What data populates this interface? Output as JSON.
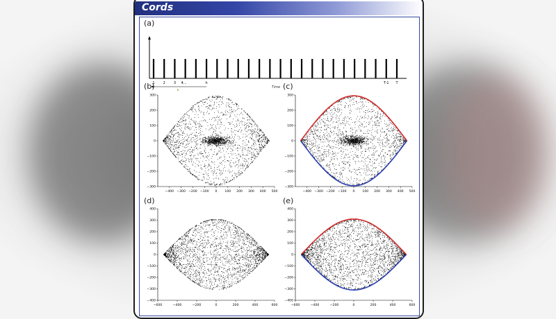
{
  "banner": {
    "title": "Cords"
  },
  "panels": {
    "a": "(a)",
    "b": "(b)",
    "c": "(c)",
    "d": "(d)",
    "e": "(e)"
  },
  "timeline": {
    "ticks": [
      "1",
      "2",
      "3",
      "4..."
    ],
    "h_label": "h",
    "arrow_label": "h",
    "time_label": "Time",
    "end_ticks": [
      "T-1",
      "T"
    ],
    "spike_count": 24
  },
  "colors": {
    "upper_envelope": "#d42a2a",
    "lower_envelope": "#2a3fb0",
    "points": "#000000",
    "accent": "#3446a6"
  },
  "chart_data": [
    {
      "type": "scatter",
      "panel": "b",
      "xlim": [
        -500,
        500
      ],
      "ylim": [
        -300,
        300
      ],
      "xticks": [
        "−400",
        "−300",
        "−200",
        "−100",
        "0",
        "100",
        "200",
        "300",
        "400",
        "500"
      ],
      "yticks": [
        "300",
        "200",
        "100",
        "0",
        "−100",
        "−200",
        "−300"
      ],
      "envelope": {
        "amplitude": 295,
        "half_width": 455
      },
      "envelope_curves": false
    },
    {
      "type": "scatter",
      "panel": "c",
      "xlim": [
        -500,
        500
      ],
      "ylim": [
        -300,
        300
      ],
      "xticks": [
        "−400",
        "−300",
        "−200",
        "−100",
        "0",
        "100",
        "200",
        "300",
        "400",
        "500"
      ],
      "yticks": [
        "300",
        "200",
        "100",
        "0",
        "−100",
        "−200",
        "−300"
      ],
      "envelope": {
        "amplitude": 295,
        "half_width": 455
      },
      "envelope_curves": true
    },
    {
      "type": "scatter",
      "panel": "d",
      "xlim": [
        -600,
        600
      ],
      "ylim": [
        -400,
        400
      ],
      "xticks": [
        "−600",
        "−400",
        "−200",
        "0",
        "200",
        "400",
        "600"
      ],
      "yticks": [
        "400",
        "300",
        "200",
        "100",
        "0",
        "−100",
        "−200",
        "−300",
        "−400"
      ],
      "envelope": {
        "amplitude": 310,
        "half_width": 540
      },
      "envelope_curves": false
    },
    {
      "type": "scatter",
      "panel": "e",
      "xlim": [
        -600,
        600
      ],
      "ylim": [
        -400,
        400
      ],
      "xticks": [
        "−600",
        "−400",
        "−200",
        "0",
        "200",
        "400",
        "600"
      ],
      "yticks": [
        "400",
        "300",
        "200",
        "100",
        "0",
        "−100",
        "−200",
        "−300",
        "−400"
      ],
      "envelope": {
        "amplitude": 310,
        "half_width": 540
      },
      "envelope_curves": true
    }
  ]
}
